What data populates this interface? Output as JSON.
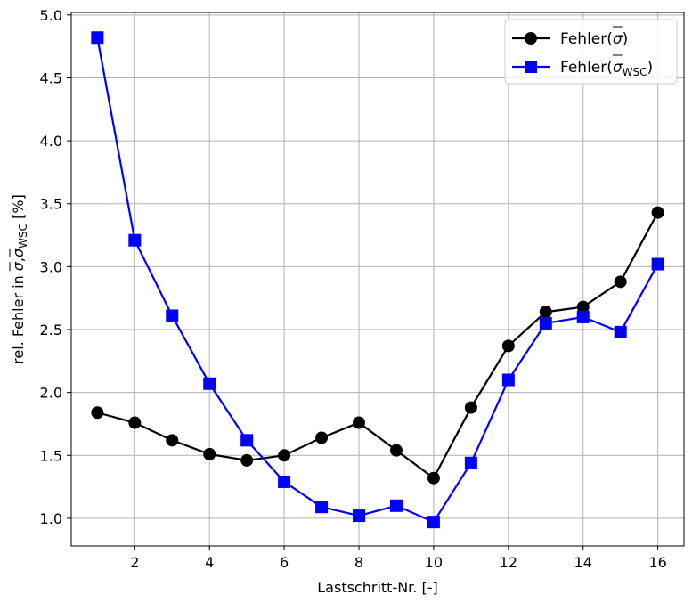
{
  "chart_data": {
    "type": "line",
    "title": "",
    "xlabel": "Lastschritt-Nr. [-]",
    "ylabel": {
      "prefix": "rel. Fehler in ",
      "sym1": "σ",
      "sep": ",",
      "sym2": "σ",
      "sub": "WSC",
      "suffix": " [%]"
    },
    "xlim": [
      0.3,
      16.7
    ],
    "ylim": [
      0.78,
      5.02
    ],
    "xticks": [
      2,
      4,
      6,
      8,
      10,
      12,
      14,
      16
    ],
    "yticks": [
      1.0,
      1.5,
      2.0,
      2.5,
      3.0,
      3.5,
      4.0,
      4.5,
      5.0
    ],
    "ytick_labels": [
      "1.0",
      "1.5",
      "2.0",
      "2.5",
      "3.0",
      "3.5",
      "4.0",
      "4.5",
      "5.0"
    ],
    "grid": true,
    "legend_position": "top-right",
    "x": [
      1,
      2,
      3,
      4,
      5,
      6,
      7,
      8,
      9,
      10,
      11,
      12,
      13,
      14,
      15,
      16
    ],
    "series": [
      {
        "name": "Fehler(σ̄)",
        "legend": {
          "prefix": "Fehler(",
          "sym": "σ",
          "sub": "",
          "suffix": ")"
        },
        "color": "#000000",
        "marker": "circle",
        "values": [
          1.84,
          1.76,
          1.62,
          1.51,
          1.46,
          1.5,
          1.64,
          1.76,
          1.54,
          1.32,
          1.88,
          2.37,
          2.64,
          2.68,
          2.88,
          3.43
        ]
      },
      {
        "name": "Fehler(σ̄WSC)",
        "legend": {
          "prefix": "Fehler(",
          "sym": "σ",
          "sub": "WSC",
          "suffix": ")"
        },
        "color": "#0000ff",
        "marker": "square",
        "values": [
          4.82,
          3.21,
          2.61,
          2.07,
          1.62,
          1.29,
          1.09,
          1.02,
          1.1,
          0.97,
          1.44,
          2.1,
          2.55,
          2.6,
          2.48,
          3.02
        ]
      }
    ]
  }
}
